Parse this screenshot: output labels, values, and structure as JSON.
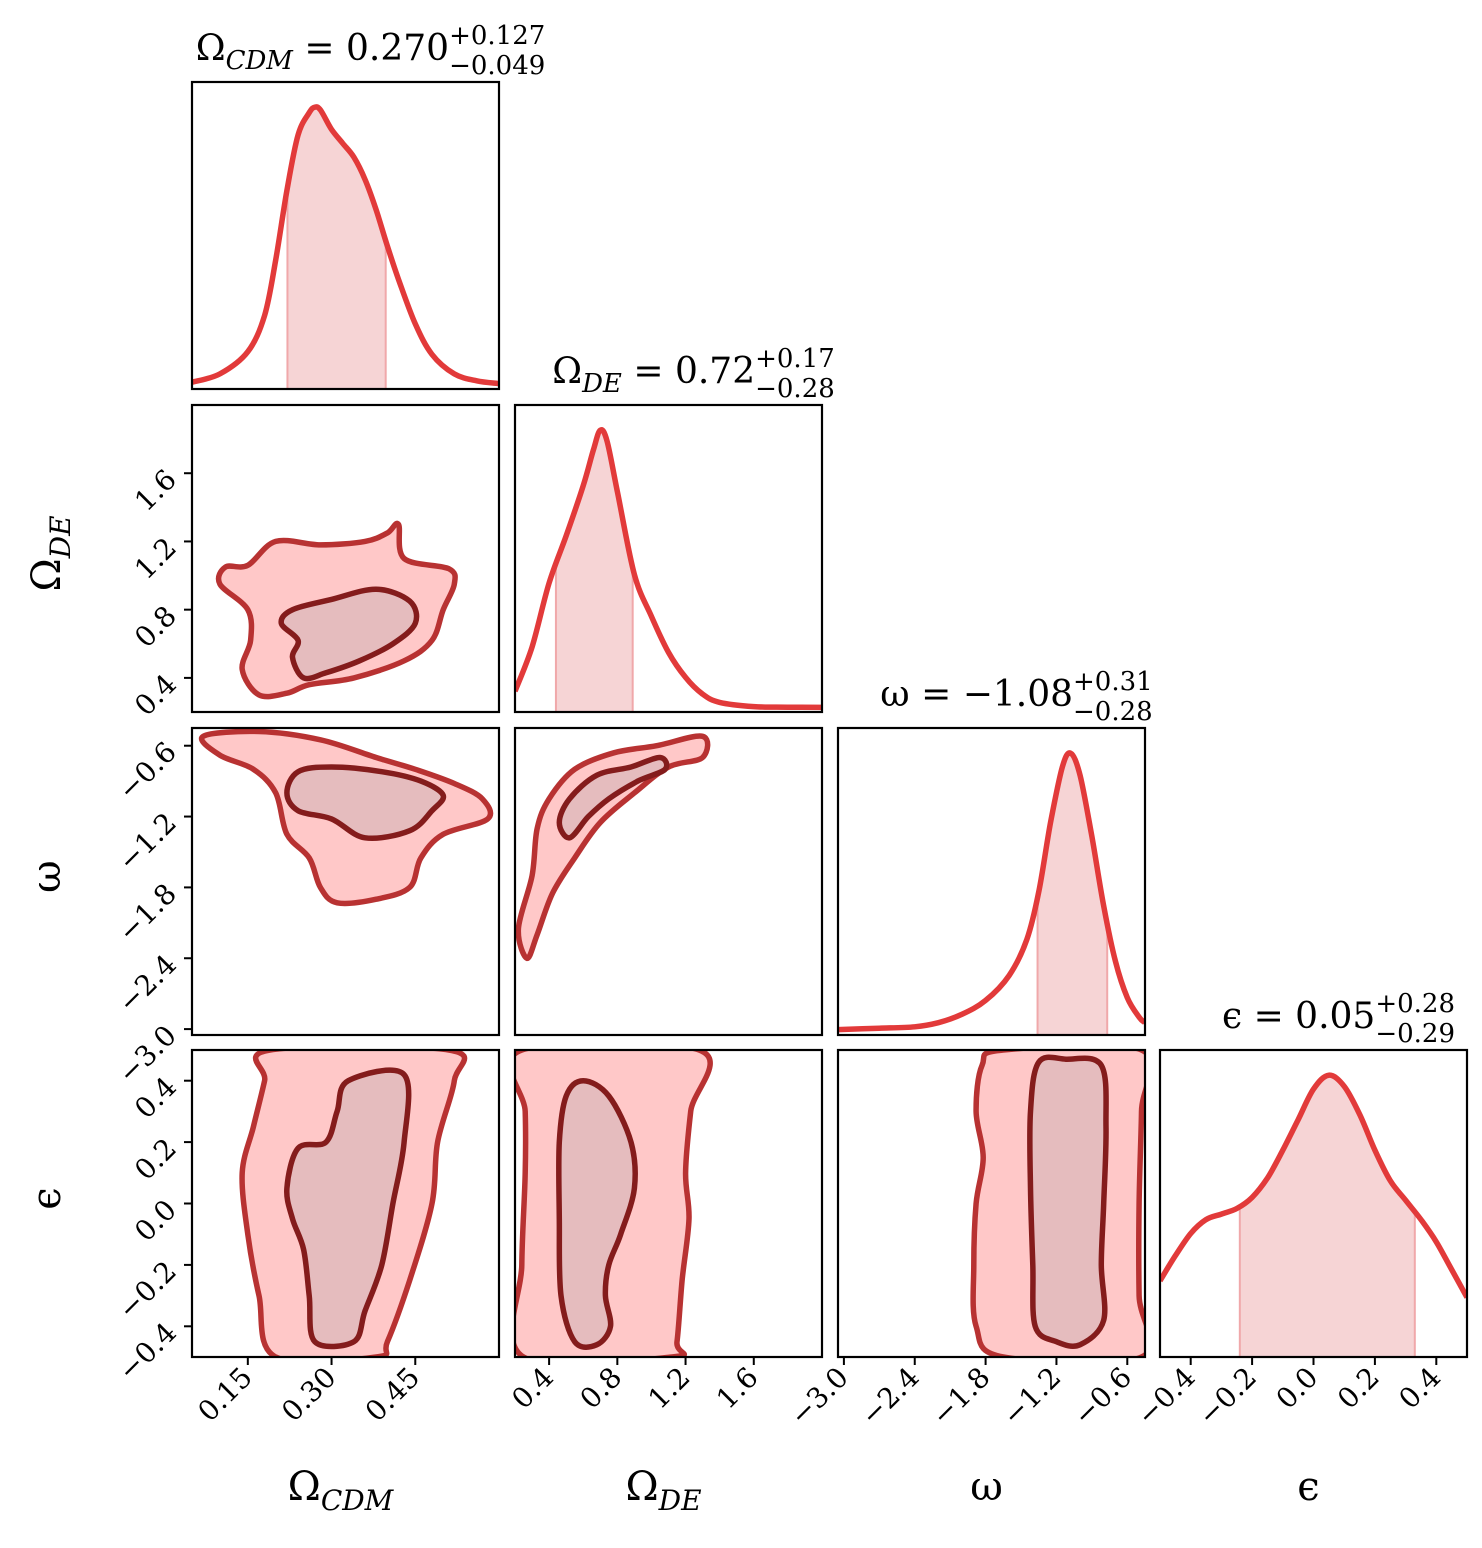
{
  "chart_data": {
    "type": "corner",
    "parameters": [
      {
        "symbol": "Ω",
        "sub": "CDM",
        "label": "Ω_CDM",
        "range": [
          0.05,
          0.6
        ],
        "ticks": [
          0.15,
          0.3,
          0.45
        ],
        "tick_labels": [
          "0.15",
          "0.30",
          "0.45"
        ],
        "title_main": "= 0.270",
        "title_plus": "+0.127",
        "title_minus": "−0.049",
        "median": 0.27,
        "ci": [
          0.221,
          0.397
        ]
      },
      {
        "symbol": "Ω",
        "sub": "DE",
        "label": "Ω_DE",
        "range": [
          0.2,
          2.0
        ],
        "ticks": [
          0.4,
          0.8,
          1.2,
          1.6
        ],
        "tick_labels": [
          "0.4",
          "0.8",
          "1.2",
          "1.6"
        ],
        "title_main": "= 0.72",
        "title_plus": "+0.17",
        "title_minus": "−0.28",
        "median": 0.72,
        "ci": [
          0.44,
          0.89
        ]
      },
      {
        "symbol": "ω",
        "sub": "",
        "label": "ω",
        "range": [
          -3.05,
          -0.45
        ],
        "ticks": [
          -3.0,
          -2.4,
          -1.8,
          -1.2,
          -0.6
        ],
        "tick_labels": [
          "−3.0",
          "−2.4",
          "−1.8",
          "−1.2",
          "−0.6"
        ],
        "title_main": "= −1.08",
        "title_plus": "+0.31",
        "title_minus": "−0.28",
        "median": -1.08,
        "ci": [
          -1.36,
          -0.77
        ]
      },
      {
        "symbol": "ϵ",
        "sub": "",
        "label": "ϵ",
        "range": [
          -0.5,
          0.5
        ],
        "ticks": [
          -0.4,
          -0.2,
          0.0,
          0.2,
          0.4
        ],
        "tick_labels": [
          "−0.4",
          "−0.2",
          "0.0",
          "0.2",
          "0.4"
        ],
        "title_main": "= 0.05",
        "title_plus": "+0.28",
        "title_minus": "−0.29",
        "median": 0.05,
        "ci": [
          -0.24,
          0.33
        ]
      }
    ],
    "marginals": [
      {
        "x": [
          0.05,
          0.1,
          0.15,
          0.18,
          0.2,
          0.22,
          0.24,
          0.26,
          0.27,
          0.28,
          0.3,
          0.32,
          0.34,
          0.36,
          0.38,
          0.4,
          0.42,
          0.45,
          0.48,
          0.52,
          0.56,
          0.6
        ],
        "y": [
          0.01,
          0.04,
          0.12,
          0.25,
          0.45,
          0.7,
          0.9,
          0.98,
          1.0,
          0.99,
          0.92,
          0.87,
          0.82,
          0.74,
          0.63,
          0.5,
          0.38,
          0.22,
          0.11,
          0.04,
          0.015,
          0.005
        ]
      },
      {
        "x": [
          0.2,
          0.3,
          0.4,
          0.5,
          0.6,
          0.66,
          0.7,
          0.74,
          0.8,
          0.9,
          1.0,
          1.1,
          1.2,
          1.3,
          1.4,
          1.6,
          1.8,
          2.0
        ],
        "y": [
          0.06,
          0.22,
          0.45,
          0.62,
          0.8,
          0.93,
          1.0,
          0.96,
          0.78,
          0.48,
          0.33,
          0.2,
          0.11,
          0.05,
          0.02,
          0.005,
          0.003,
          0.002
        ],
        "ci_x_max": 0.89
      },
      {
        "x": [
          -3.05,
          -2.7,
          -2.4,
          -2.2,
          -2.0,
          -1.8,
          -1.6,
          -1.45,
          -1.35,
          -1.25,
          -1.15,
          -1.08,
          -1.0,
          -0.9,
          -0.8,
          -0.7,
          -0.6,
          -0.5,
          -0.45
        ],
        "y": [
          0.005,
          0.01,
          0.015,
          0.03,
          0.06,
          0.11,
          0.2,
          0.33,
          0.5,
          0.75,
          0.95,
          1.0,
          0.92,
          0.7,
          0.45,
          0.25,
          0.12,
          0.05,
          0.03
        ]
      },
      {
        "x": [
          -0.5,
          -0.45,
          -0.4,
          -0.35,
          -0.3,
          -0.25,
          -0.2,
          -0.15,
          -0.1,
          -0.05,
          0.0,
          0.05,
          0.1,
          0.15,
          0.2,
          0.25,
          0.3,
          0.35,
          0.4,
          0.45,
          0.5
        ],
        "y": [
          0.26,
          0.35,
          0.43,
          0.48,
          0.5,
          0.52,
          0.56,
          0.63,
          0.73,
          0.84,
          0.95,
          1.0,
          0.96,
          0.86,
          0.73,
          0.62,
          0.55,
          0.48,
          0.4,
          0.3,
          0.2
        ]
      }
    ],
    "contours": [
      {
        "i": 1,
        "j": 0,
        "outer": [
          [
            0.17,
            0.3
          ],
          [
            0.14,
            0.45
          ],
          [
            0.155,
            0.62
          ],
          [
            0.15,
            0.8
          ],
          [
            0.1,
            0.95
          ],
          [
            0.11,
            1.05
          ],
          [
            0.15,
            1.06
          ],
          [
            0.2,
            1.2
          ],
          [
            0.28,
            1.18
          ],
          [
            0.36,
            1.2
          ],
          [
            0.4,
            1.25
          ],
          [
            0.42,
            1.3
          ],
          [
            0.43,
            1.1
          ],
          [
            0.51,
            1.04
          ],
          [
            0.52,
            0.95
          ],
          [
            0.5,
            0.8
          ],
          [
            0.48,
            0.62
          ],
          [
            0.43,
            0.5
          ],
          [
            0.34,
            0.4
          ],
          [
            0.26,
            0.36
          ],
          [
            0.22,
            0.31
          ]
        ],
        "inner": [
          [
            0.25,
            0.4
          ],
          [
            0.23,
            0.52
          ],
          [
            0.24,
            0.62
          ],
          [
            0.21,
            0.72
          ],
          [
            0.23,
            0.8
          ],
          [
            0.3,
            0.86
          ],
          [
            0.38,
            0.92
          ],
          [
            0.44,
            0.85
          ],
          [
            0.45,
            0.72
          ],
          [
            0.41,
            0.6
          ],
          [
            0.35,
            0.5
          ],
          [
            0.29,
            0.43
          ]
        ]
      },
      {
        "i": 2,
        "j": 0,
        "outer": [
          [
            0.07,
            -0.52
          ],
          [
            0.1,
            -0.68
          ],
          [
            0.16,
            -0.8
          ],
          [
            0.2,
            -1.0
          ],
          [
            0.22,
            -1.35
          ],
          [
            0.26,
            -1.55
          ],
          [
            0.28,
            -1.8
          ],
          [
            0.31,
            -1.93
          ],
          [
            0.38,
            -1.9
          ],
          [
            0.44,
            -1.8
          ],
          [
            0.46,
            -1.55
          ],
          [
            0.5,
            -1.35
          ],
          [
            0.58,
            -1.22
          ],
          [
            0.57,
            -1.05
          ],
          [
            0.52,
            -0.92
          ],
          [
            0.45,
            -0.8
          ],
          [
            0.38,
            -0.7
          ],
          [
            0.28,
            -0.55
          ],
          [
            0.17,
            -0.48
          ]
        ],
        "inner": [
          [
            0.24,
            -0.82
          ],
          [
            0.22,
            -1.0
          ],
          [
            0.24,
            -1.15
          ],
          [
            0.3,
            -1.22
          ],
          [
            0.36,
            -1.38
          ],
          [
            0.44,
            -1.32
          ],
          [
            0.48,
            -1.15
          ],
          [
            0.5,
            -1.02
          ],
          [
            0.46,
            -0.9
          ],
          [
            0.39,
            -0.82
          ],
          [
            0.3,
            -0.78
          ]
        ]
      },
      {
        "i": 3,
        "j": 0,
        "outer": [
          [
            0.2,
            -0.5
          ],
          [
            0.17,
            -0.3
          ],
          [
            0.15,
            -0.1
          ],
          [
            0.14,
            0.1
          ],
          [
            0.16,
            0.25
          ],
          [
            0.18,
            0.4
          ],
          [
            0.19,
            0.5
          ],
          [
            0.51,
            0.5
          ],
          [
            0.52,
            0.4
          ],
          [
            0.49,
            0.2
          ],
          [
            0.48,
            0.0
          ],
          [
            0.44,
            -0.25
          ],
          [
            0.4,
            -0.45
          ],
          [
            0.38,
            -0.5
          ]
        ],
        "inner": [
          [
            0.27,
            -0.45
          ],
          [
            0.26,
            -0.3
          ],
          [
            0.25,
            -0.15
          ],
          [
            0.23,
            -0.05
          ],
          [
            0.22,
            0.05
          ],
          [
            0.24,
            0.18
          ],
          [
            0.29,
            0.2
          ],
          [
            0.31,
            0.3
          ],
          [
            0.33,
            0.4
          ],
          [
            0.43,
            0.42
          ],
          [
            0.43,
            0.2
          ],
          [
            0.41,
            0.0
          ],
          [
            0.39,
            -0.2
          ],
          [
            0.36,
            -0.35
          ],
          [
            0.34,
            -0.45
          ]
        ]
      },
      {
        "i": 2,
        "j": 1,
        "outer": [
          [
            0.27,
            -2.4
          ],
          [
            0.22,
            -2.15
          ],
          [
            0.3,
            -1.7
          ],
          [
            0.33,
            -1.3
          ],
          [
            0.4,
            -1.05
          ],
          [
            0.55,
            -0.8
          ],
          [
            0.78,
            -0.66
          ],
          [
            1.03,
            -0.6
          ],
          [
            1.3,
            -0.52
          ],
          [
            1.3,
            -0.7
          ],
          [
            1.1,
            -0.78
          ],
          [
            0.9,
            -1.0
          ],
          [
            0.7,
            -1.25
          ],
          [
            0.55,
            -1.55
          ],
          [
            0.42,
            -1.85
          ],
          [
            0.33,
            -2.2
          ]
        ],
        "inner": [
          [
            0.52,
            -1.38
          ],
          [
            0.46,
            -1.25
          ],
          [
            0.52,
            -1.05
          ],
          [
            0.68,
            -0.85
          ],
          [
            0.88,
            -0.78
          ],
          [
            1.05,
            -0.7
          ],
          [
            1.08,
            -0.8
          ],
          [
            0.92,
            -0.9
          ],
          [
            0.75,
            -1.05
          ],
          [
            0.63,
            -1.2
          ]
        ]
      },
      {
        "i": 3,
        "j": 1,
        "outer": [
          [
            0.25,
            -0.5
          ],
          [
            0.24,
            -0.2
          ],
          [
            0.26,
            0.1
          ],
          [
            0.26,
            0.3
          ],
          [
            0.24,
            0.5
          ],
          [
            1.28,
            0.5
          ],
          [
            1.23,
            0.3
          ],
          [
            1.2,
            0.1
          ],
          [
            1.22,
            -0.05
          ],
          [
            1.18,
            -0.25
          ],
          [
            1.15,
            -0.45
          ],
          [
            1.12,
            -0.5
          ]
        ],
        "inner": [
          [
            0.55,
            -0.45
          ],
          [
            0.47,
            -0.3
          ],
          [
            0.46,
            -0.05
          ],
          [
            0.46,
            0.2
          ],
          [
            0.5,
            0.35
          ],
          [
            0.6,
            0.4
          ],
          [
            0.75,
            0.35
          ],
          [
            0.88,
            0.2
          ],
          [
            0.9,
            0.05
          ],
          [
            0.82,
            -0.1
          ],
          [
            0.75,
            -0.2
          ],
          [
            0.73,
            -0.3
          ],
          [
            0.76,
            -0.4
          ],
          [
            0.68,
            -0.46
          ]
        ]
      },
      {
        "i": 3,
        "j": 2,
        "outer": [
          [
            -1.65,
            -0.5
          ],
          [
            -1.88,
            -0.4
          ],
          [
            -1.9,
            -0.2
          ],
          [
            -1.88,
            0.0
          ],
          [
            -1.82,
            0.15
          ],
          [
            -1.88,
            0.3
          ],
          [
            -1.83,
            0.45
          ],
          [
            -1.65,
            0.5
          ],
          [
            -0.48,
            0.5
          ],
          [
            -0.48,
            0.3
          ],
          [
            -0.5,
            0.0
          ],
          [
            -0.5,
            -0.3
          ],
          [
            -0.48,
            -0.5
          ]
        ],
        "inner": [
          [
            -1.38,
            -0.4
          ],
          [
            -1.4,
            -0.2
          ],
          [
            -1.42,
            0.05
          ],
          [
            -1.42,
            0.3
          ],
          [
            -1.35,
            0.46
          ],
          [
            -1.12,
            0.47
          ],
          [
            -0.82,
            0.45
          ],
          [
            -0.78,
            0.25
          ],
          [
            -0.8,
            0.0
          ],
          [
            -0.82,
            -0.2
          ],
          [
            -0.8,
            -0.38
          ],
          [
            -1.0,
            -0.46
          ],
          [
            -1.2,
            -0.45
          ]
        ]
      }
    ]
  }
}
